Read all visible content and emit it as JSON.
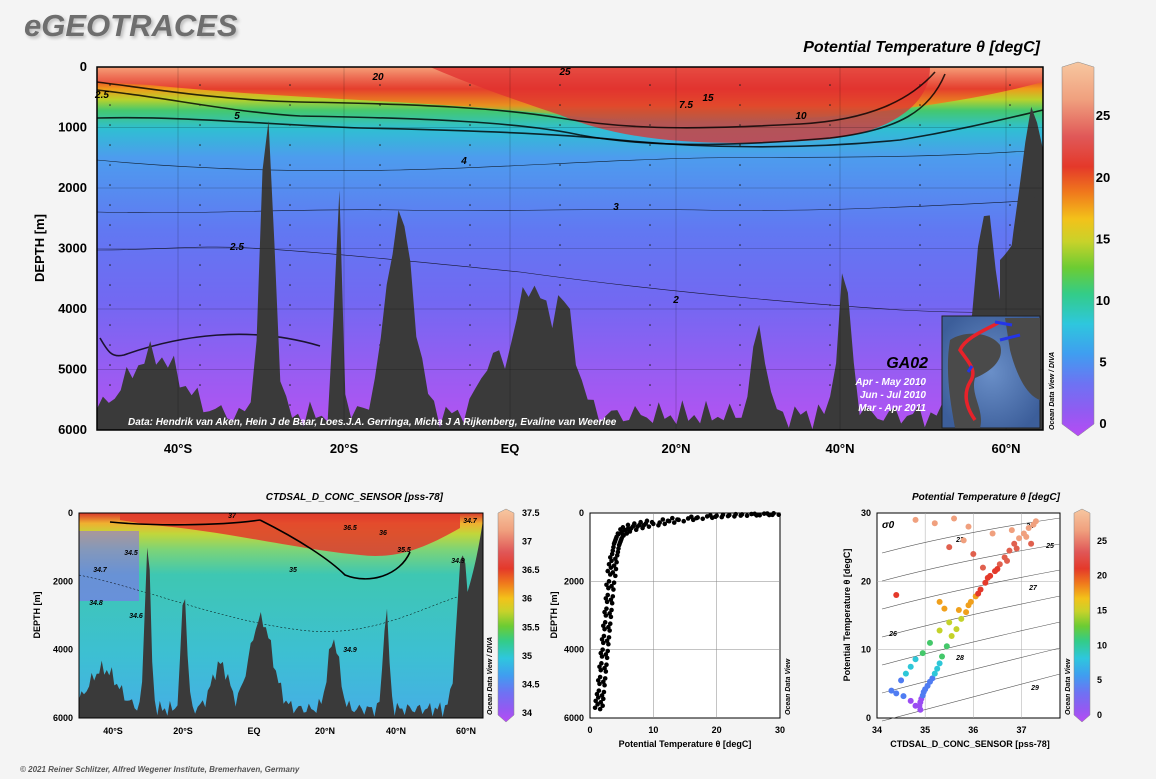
{
  "app_title": "eGEOTRACES",
  "copyright": "© 2021 Reiner Schlitzer, Alfred Wegener Institute, Bremerhaven, Germany",
  "chart_data": [
    {
      "type": "heatmap",
      "title": "Potential Temperature θ [degC]",
      "ylabel": "DEPTH [m]",
      "y_ticks": [
        "0",
        "1000",
        "2000",
        "3000",
        "4000",
        "5000",
        "6000"
      ],
      "x_ticks": [
        "40°S",
        "20°S",
        "EQ",
        "20°N",
        "40°N",
        "60°N"
      ],
      "colorbar_ticks": [
        "0",
        "5",
        "10",
        "15",
        "20",
        "25"
      ],
      "colorbar_label": "Ocean Data View / DIVA",
      "contour_labels": [
        "20",
        "25",
        "15",
        "10",
        "7.5",
        "5",
        "4",
        "3",
        "2.5",
        "2",
        "2.5"
      ],
      "credit": "Data: Hendrik van Aken, Hein J de Baar, Loes.J.A. Gerringa, Micha J A Rijkenberg, Evaline van Weerlee",
      "inset": {
        "section": "GA02",
        "periods": [
          "Apr - May 2010",
          "Jun - Jul 2010",
          "Mar - Apr 2011"
        ]
      }
    },
    {
      "type": "heatmap",
      "title": "CTDSAL_D_CONC_SENSOR [pss-78]",
      "ylabel": "DEPTH [m]",
      "y_ticks": [
        "0",
        "2000",
        "4000",
        "6000"
      ],
      "x_ticks": [
        "40°S",
        "20°S",
        "EQ",
        "20°N",
        "40°N",
        "60°N"
      ],
      "colorbar_ticks": [
        "34",
        "34.5",
        "35",
        "35.5",
        "36",
        "36.5",
        "37",
        "37.5"
      ],
      "colorbar_label": "Ocean Data View / DIVA",
      "contour_labels": [
        "37",
        "36.5",
        "36",
        "34.7",
        "34.5",
        "34.7",
        "34.8",
        "35",
        "34.9",
        "34.9",
        "34.6",
        "35.5"
      ]
    },
    {
      "type": "scatter",
      "xlabel": "Potential Temperature θ [degC]",
      "ylabel": "DEPTH [m]",
      "x_ticks": [
        "0",
        "10",
        "20",
        "30"
      ],
      "y_ticks": [
        "0",
        "2000",
        "4000",
        "6000"
      ],
      "xlim": [
        0,
        30
      ],
      "ylim": [
        6000,
        0
      ],
      "side_label": "Ocean Data View",
      "series": [
        {
          "values": [
            [
              29.0,
              10
            ],
            [
              27.5,
              20
            ],
            [
              25.5,
              30
            ],
            [
              24.0,
              40
            ],
            [
              22.0,
              60
            ],
            [
              20.0,
              80
            ],
            [
              18.5,
              100
            ],
            [
              17.0,
              130
            ],
            [
              15.5,
              160
            ],
            [
              14.0,
              200
            ],
            [
              12.5,
              240
            ],
            [
              11.0,
              280
            ],
            [
              10.0,
              320
            ],
            [
              8.5,
              360
            ],
            [
              7.5,
              400
            ],
            [
              6.5,
              450
            ],
            [
              5.5,
              500
            ],
            [
              5.0,
              560
            ],
            [
              4.5,
              620
            ],
            [
              4.2,
              700
            ],
            [
              4.0,
              800
            ],
            [
              3.8,
              900
            ],
            [
              3.7,
              1000
            ],
            [
              3.6,
              1100
            ],
            [
              3.5,
              1200
            ],
            [
              3.4,
              1400
            ],
            [
              3.3,
              1600
            ],
            [
              3.2,
              1800
            ],
            [
              3.0,
              2000
            ],
            [
              2.9,
              2200
            ],
            [
              2.8,
              2400
            ],
            [
              2.7,
              2600
            ],
            [
              2.6,
              2800
            ],
            [
              2.5,
              3000
            ],
            [
              2.4,
              3200
            ],
            [
              2.3,
              3400
            ],
            [
              2.2,
              3600
            ],
            [
              2.1,
              3800
            ],
            [
              2.0,
              4000
            ],
            [
              1.9,
              4200
            ],
            [
              1.8,
              4400
            ],
            [
              1.7,
              4600
            ],
            [
              1.6,
              4800
            ],
            [
              1.5,
              5000
            ],
            [
              1.4,
              5200
            ],
            [
              1.3,
              5400
            ],
            [
              1.2,
              5600
            ],
            [
              28.0,
              15
            ],
            [
              26.0,
              25
            ],
            [
              23.0,
              35
            ],
            [
              21.0,
              50
            ],
            [
              19.0,
              70
            ],
            [
              16.0,
              110
            ],
            [
              13.0,
              150
            ],
            [
              11.5,
              190
            ],
            [
              9.0,
              230
            ],
            [
              8.0,
              270
            ],
            [
              7.0,
              310
            ],
            [
              6.0,
              350
            ],
            [
              5.2,
              420
            ],
            [
              4.8,
              480
            ],
            [
              4.4,
              600
            ],
            [
              4.1,
              750
            ],
            [
              3.9,
              850
            ],
            [
              3.2,
              1300
            ],
            [
              3.0,
              1500
            ],
            [
              2.8,
              1700
            ],
            [
              2.6,
              2100
            ],
            [
              2.5,
              2500
            ],
            [
              2.3,
              2900
            ],
            [
              2.1,
              3300
            ],
            [
              1.9,
              3700
            ],
            [
              1.7,
              4100
            ],
            [
              1.5,
              4500
            ],
            [
              1.3,
              4900
            ],
            [
              1.1,
              5300
            ],
            [
              0.9,
              5500
            ],
            [
              0.8,
              5700
            ]
          ]
        }
      ]
    },
    {
      "type": "scatter",
      "title": "Potential Temperature θ [degC]",
      "xlabel": "CTDSAL_D_CONC_SENSOR [pss-78]",
      "ylabel": "Potential Temperature θ [degC]",
      "x_ticks": [
        "34",
        "35",
        "36",
        "37"
      ],
      "y_ticks": [
        "0",
        "10",
        "20",
        "30"
      ],
      "xlim": [
        34,
        37.8
      ],
      "ylim": [
        0,
        30
      ],
      "density_label": "σ0",
      "isopycnal_labels": [
        "23",
        "24",
        "25",
        "26",
        "27",
        "28",
        "29"
      ],
      "colorbar_ticks": [
        "0",
        "5",
        "10",
        "15",
        "20",
        "25"
      ],
      "colorbar_label": "Ocean Data View",
      "series": [
        {
          "values": [
            [
              34.9,
              1.2
            ],
            [
              34.88,
              1.8
            ],
            [
              34.9,
              2.3
            ],
            [
              34.92,
              2.8
            ],
            [
              34.95,
              3.3
            ],
            [
              34.97,
              3.8
            ],
            [
              35.0,
              4.2
            ],
            [
              35.05,
              4.7
            ],
            [
              35.1,
              5.3
            ],
            [
              35.15,
              5.8
            ],
            [
              35.2,
              6.5
            ],
            [
              35.25,
              7.2
            ],
            [
              35.3,
              8.0
            ],
            [
              35.35,
              9.0
            ],
            [
              35.45,
              10.5
            ],
            [
              35.55,
              12.0
            ],
            [
              35.65,
              13.0
            ],
            [
              35.75,
              14.5
            ],
            [
              35.85,
              15.5
            ],
            [
              35.95,
              17.0
            ],
            [
              36.05,
              17.8
            ],
            [
              36.15,
              18.8
            ],
            [
              36.25,
              19.8
            ],
            [
              36.35,
              20.8
            ],
            [
              36.45,
              21.5
            ],
            [
              36.55,
              22.5
            ],
            [
              36.65,
              23.5
            ],
            [
              36.75,
              24.5
            ],
            [
              36.85,
              25.5
            ],
            [
              36.95,
              26.3
            ],
            [
              37.05,
              27.0
            ],
            [
              37.15,
              27.8
            ],
            [
              37.25,
              28.3
            ],
            [
              37.3,
              28.8
            ],
            [
              34.3,
              4.0
            ],
            [
              34.4,
              3.6
            ],
            [
              34.55,
              3.2
            ],
            [
              34.7,
              2.5
            ],
            [
              34.8,
              1.8
            ],
            [
              34.5,
              5.5
            ],
            [
              34.6,
              6.5
            ],
            [
              34.7,
              7.5
            ],
            [
              34.8,
              8.6
            ],
            [
              34.95,
              9.5
            ],
            [
              35.1,
              11.0
            ],
            [
              35.3,
              12.8
            ],
            [
              35.5,
              14.0
            ],
            [
              35.7,
              15.8
            ],
            [
              35.9,
              16.5
            ],
            [
              36.1,
              18.2
            ],
            [
              36.3,
              20.5
            ],
            [
              36.5,
              21.8
            ],
            [
              36.7,
              23.0
            ],
            [
              36.9,
              24.8
            ],
            [
              37.1,
              26.5
            ],
            [
              36.2,
              22.0
            ],
            [
              36.0,
              24.0
            ],
            [
              35.8,
              26.0
            ],
            [
              35.5,
              25.0
            ],
            [
              35.3,
              17.0
            ],
            [
              35.4,
              16.0
            ],
            [
              34.4,
              18.0
            ],
            [
              36.8,
              27.5
            ],
            [
              37.2,
              25.5
            ],
            [
              36.4,
              27.0
            ],
            [
              35.9,
              28.0
            ],
            [
              35.2,
              28.5
            ],
            [
              34.8,
              29.0
            ],
            [
              35.6,
              29.2
            ]
          ]
        }
      ]
    }
  ]
}
